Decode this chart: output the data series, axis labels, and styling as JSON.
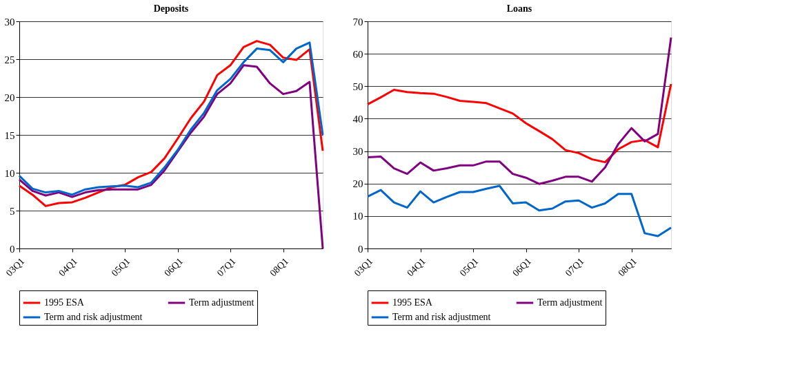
{
  "chart_data": [
    {
      "type": "line",
      "title": "Deposits",
      "categories": [
        "03Q1",
        null,
        null,
        null,
        "04Q1",
        null,
        null,
        null,
        "05Q1",
        null,
        null,
        null,
        "06Q1",
        null,
        null,
        null,
        "07Q1",
        null,
        null,
        null,
        "08Q1",
        null,
        null,
        null
      ],
      "series": [
        {
          "name": "1995 ESA",
          "color": "#ff0000",
          "values": [
            8.3,
            7.1,
            5.6,
            6.0,
            6.1,
            6.7,
            7.4,
            8.1,
            8.4,
            9.4,
            10.1,
            11.9,
            14.5,
            17.2,
            19.4,
            22.9,
            24.2,
            26.6,
            27.4,
            26.9,
            25.2,
            24.9,
            26.3,
            12.9
          ]
        },
        {
          "name": "Term adjustment",
          "color": "#800080",
          "values": [
            9.1,
            7.6,
            7.0,
            7.4,
            6.8,
            7.4,
            7.7,
            7.8,
            7.8,
            7.8,
            8.4,
            10.3,
            12.8,
            15.3,
            17.4,
            20.4,
            21.8,
            24.2,
            24.0,
            21.8,
            20.4,
            20.8,
            22.0,
            0
          ]
        },
        {
          "name": "Term and risk adjustment",
          "color": "#0066cc",
          "values": [
            9.6,
            7.9,
            7.4,
            7.6,
            7.1,
            7.8,
            8.1,
            8.2,
            8.3,
            8.1,
            8.7,
            10.7,
            13.0,
            15.7,
            17.9,
            20.9,
            22.4,
            24.6,
            26.4,
            26.2,
            24.6,
            26.4,
            27.2,
            15.0
          ]
        }
      ],
      "ylim": [
        0,
        30
      ],
      "yticks": [
        0,
        5,
        10,
        15,
        20,
        25,
        30
      ],
      "grid": "y",
      "legend": "bottom",
      "marker": "none",
      "line_style": "solid"
    },
    {
      "type": "line",
      "title": "Loans",
      "categories": [
        "03Q1",
        null,
        null,
        null,
        "04Q1",
        null,
        null,
        null,
        "05Q1",
        null,
        null,
        null,
        "06Q1",
        null,
        null,
        null,
        "07Q1",
        null,
        null,
        null,
        "08Q1",
        null,
        null,
        null
      ],
      "series": [
        {
          "name": "1995 ESA",
          "color": "#ff0000",
          "values": [
            44.4,
            46.6,
            48.9,
            48.2,
            47.9,
            47.7,
            46.7,
            45.5,
            45.2,
            44.8,
            43.2,
            41.6,
            38.6,
            36.2,
            33.7,
            30.3,
            29.4,
            27.5,
            26.6,
            30.6,
            32.8,
            33.4,
            31.2,
            50.7
          ]
        },
        {
          "name": "Term adjustment",
          "color": "#800080",
          "values": [
            28.1,
            28.3,
            24.7,
            23.0,
            26.5,
            24.0,
            24.7,
            25.6,
            25.6,
            26.8,
            26.8,
            23.0,
            21.8,
            19.9,
            20.9,
            22.1,
            22.1,
            20.6,
            25.0,
            32.2,
            37.1,
            33.0,
            35.3,
            65.0
          ]
        },
        {
          "name": "Term and risk adjustment",
          "color": "#0066cc",
          "values": [
            16.0,
            18.0,
            14.2,
            12.6,
            17.6,
            14.2,
            15.9,
            17.4,
            17.4,
            18.4,
            19.3,
            13.9,
            14.2,
            11.7,
            12.3,
            14.5,
            14.8,
            12.6,
            13.9,
            16.8,
            16.8,
            4.7,
            3.8,
            6.4
          ]
        }
      ],
      "ylim": [
        0,
        70
      ],
      "yticks": [
        0,
        10,
        20,
        30,
        40,
        50,
        60,
        70
      ],
      "grid": "y",
      "legend": "bottom",
      "marker": "none",
      "line_style": "solid"
    }
  ]
}
